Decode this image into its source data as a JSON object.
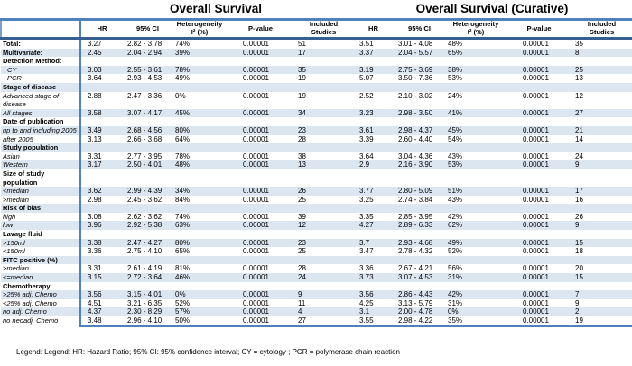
{
  "titles": {
    "os": "Overall Survival",
    "osc": "Overall Survival (Curative)"
  },
  "columns": {
    "hr": "HR",
    "ci": "95% CI",
    "het1": "Heterogeneity",
    "het2": "I² (%)",
    "p": "P-value",
    "inc1": "Included",
    "inc2": "Studies"
  },
  "rows": [
    {
      "label": "Total:",
      "style": "bold",
      "os": [
        "3.27",
        "2.82 - 3.78",
        "74%",
        "0.00001",
        "51"
      ],
      "osc": [
        "3.51",
        "3.01 - 4.08",
        "48%",
        "0.00001",
        "35"
      ]
    },
    {
      "label": "Multivariate:",
      "style": "bold",
      "os": [
        "2.45",
        "2.04 - 2.94",
        "39%",
        "0.00001",
        "17"
      ],
      "osc": [
        "3.37",
        "2.04 - 5.57",
        "65%",
        "0.00001",
        "8"
      ]
    },
    {
      "label": "Detection Method:",
      "style": "bold",
      "os": null,
      "osc": null
    },
    {
      "label": "CY",
      "style": "italic-indent",
      "os": [
        "3.03",
        "2.55 - 3.61",
        "78%",
        "0.00001",
        "35"
      ],
      "osc": [
        "3.19",
        "2.75 - 3.69",
        "38%",
        "0.00001",
        "25"
      ]
    },
    {
      "label": "PCR",
      "style": "italic-indent",
      "os": [
        "3.64",
        "2.93 - 4.53",
        "49%",
        "0.00001",
        "19"
      ],
      "osc": [
        "5.07",
        "3.50 - 7.36",
        "53%",
        "0.00001",
        "13"
      ]
    },
    {
      "label": "Stage of disease",
      "style": "bold",
      "os": null,
      "osc": null
    },
    {
      "label": "Advanced stage of disease",
      "style": "italic",
      "os": [
        "2.88",
        "2.47 - 3.36",
        "0%",
        "0.00001",
        "19"
      ],
      "osc": [
        "2.52",
        "2.10 - 3.02",
        "24%",
        "0.00001",
        "12"
      ]
    },
    {
      "label": "All stages",
      "style": "italic",
      "os": [
        "3.58",
        "3.07 - 4.17",
        "45%",
        "0.00001",
        "34"
      ],
      "osc": [
        "3.23",
        "2.98 - 3.50",
        "41%",
        "0.00001",
        "27"
      ]
    },
    {
      "label": "Date of publication",
      "style": "bold",
      "os": null,
      "osc": null
    },
    {
      "label": "up to and including 2005",
      "style": "italic",
      "os": [
        "3.49",
        "2.68 - 4.56",
        "80%",
        "0.00001",
        "23"
      ],
      "osc": [
        "3.61",
        "2.98 - 4.37",
        "45%",
        "0.00001",
        "21"
      ]
    },
    {
      "label": "after 2005",
      "style": "italic",
      "os": [
        "3.13",
        "2.66 - 3.68",
        "64%",
        "0.00001",
        "28"
      ],
      "osc": [
        "3.39",
        "2.60 - 4.40",
        "54%",
        "0.00001",
        "14"
      ]
    },
    {
      "label": "Study population",
      "style": "bold",
      "os": null,
      "osc": null
    },
    {
      "label": "Asian",
      "style": "italic",
      "os": [
        "3.31",
        "2.77 - 3.95",
        "78%",
        "0.00001",
        "38"
      ],
      "osc": [
        "3.64",
        "3.04 - 4.36",
        "43%",
        "0.00001",
        "24"
      ]
    },
    {
      "label": "Western",
      "style": "italic",
      "os": [
        "3.17",
        "2.50 - 4.01",
        "48%",
        "0.00001",
        "13"
      ],
      "osc": [
        "2.9",
        "2.16 - 3.90",
        "53%",
        "0.00001",
        "9"
      ]
    },
    {
      "label": "Size of study population",
      "style": "bold",
      "os": null,
      "osc": null
    },
    {
      "label": "<median",
      "style": "italic",
      "os": [
        "3.62",
        "2.99 - 4.39",
        "34%",
        "0.00001",
        "26"
      ],
      "osc": [
        "3.77",
        "2.80 - 5.09",
        "51%",
        "0.00001",
        "17"
      ]
    },
    {
      "label": ">median",
      "style": "italic",
      "os": [
        "2.98",
        "2.45 - 3.62",
        "84%",
        "0.00001",
        "25"
      ],
      "osc": [
        "3.25",
        "2.74 - 3.84",
        "43%",
        "0.00001",
        "16"
      ]
    },
    {
      "label": "Risk of bias",
      "style": "bold",
      "os": null,
      "osc": null
    },
    {
      "label": "high",
      "style": "italic",
      "os": [
        "3.08",
        "2.62 - 3.62",
        "74%",
        "0.00001",
        "39"
      ],
      "osc": [
        "3.35",
        "2.85 - 3.95",
        "42%",
        "0.00001",
        "26"
      ]
    },
    {
      "label": "low",
      "style": "italic",
      "os": [
        "3.96",
        "2.92 - 5.38",
        "63%",
        "0.00001",
        "12"
      ],
      "osc": [
        "4.27",
        "2.89 - 6.33",
        "62%",
        "0.00001",
        "9"
      ]
    },
    {
      "label": "Lavage fluid",
      "style": "bold",
      "os": null,
      "osc": null
    },
    {
      "label": ">150ml",
      "style": "italic",
      "os": [
        "3.38",
        "2.47 - 4.27",
        "80%",
        "0.00001",
        "23"
      ],
      "osc": [
        "3.7",
        "2.93 - 4.68",
        "49%",
        "0.00001",
        "15"
      ]
    },
    {
      "label": "<150ml",
      "style": "italic",
      "os": [
        "3.36",
        "2.75 - 4.10",
        "65%",
        "0.00001",
        "25"
      ],
      "osc": [
        "3.47",
        "2.78 - 4.32",
        "52%",
        "0.00001",
        "18"
      ]
    },
    {
      "label": "FITC positive (%)",
      "style": "bold",
      "os": null,
      "osc": null
    },
    {
      "label": ">median",
      "style": "italic",
      "os": [
        "3.31",
        "2.61 - 4.19",
        "81%",
        "0.00001",
        "28"
      ],
      "osc": [
        "3.36",
        "2.67 - 4.21",
        "56%",
        "0.00001",
        "20"
      ]
    },
    {
      "label": "<=median",
      "style": "italic",
      "os": [
        "3.15",
        "2.72 - 3.64",
        "46%",
        "0.00001",
        "24"
      ],
      "osc": [
        "3.73",
        "3.07 - 4.53",
        "31%",
        "0.00001",
        "15"
      ]
    },
    {
      "label": "Chemotherapy",
      "style": "bold",
      "os": null,
      "osc": null
    },
    {
      "label": ">25% adj. Chemo",
      "style": "italic",
      "os": [
        "3.56",
        "3.15 - 4.01",
        "0%",
        "0.00001",
        "9"
      ],
      "osc": [
        "3.56",
        "2.86 - 4.43",
        "42%",
        "0.00001",
        "7"
      ]
    },
    {
      "label": "<25% adj. Chemo",
      "style": "italic",
      "os": [
        "4.51",
        "3.21 - 6.35",
        "52%",
        "0.00001",
        "11"
      ],
      "osc": [
        "4.25",
        "3.13 - 5.79",
        "31%",
        "0.00001",
        "9"
      ]
    },
    {
      "label": "no adj. Chemo",
      "style": "italic",
      "os": [
        "4.37",
        "2.30 - 8.29",
        "57%",
        "0.00001",
        "4"
      ],
      "osc": [
        "3.1",
        "2.00 - 4.78",
        "0%",
        "0.00001",
        "2"
      ]
    },
    {
      "label": "no neoadj. Chemo",
      "style": "italic",
      "os": [
        "3.48",
        "2.96 - 4.10",
        "50%",
        "0.00001",
        "27"
      ],
      "osc": [
        "3.55",
        "2.98 - 4.22",
        "35%",
        "0.00001",
        "19"
      ]
    }
  ],
  "legend": "Legend: Legend: HR: Hazard Ratio; 95% CI: 95% confidence interval; CY = cytology ; PCR = polymerase chain reaction"
}
